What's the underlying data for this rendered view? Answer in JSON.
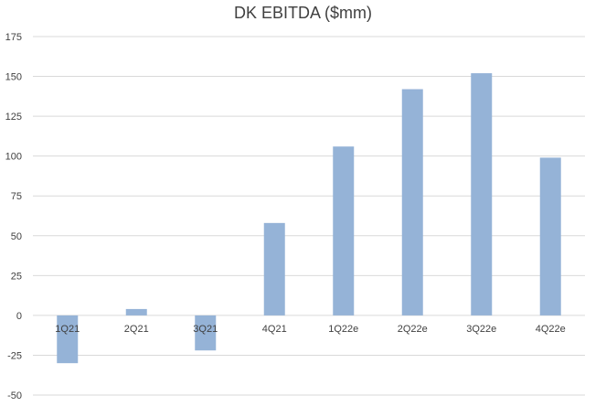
{
  "chart_data": {
    "type": "bar",
    "title": "DK EBITDA ($mm)",
    "xlabel": "",
    "ylabel": "",
    "categories": [
      "1Q21",
      "2Q21",
      "3Q21",
      "4Q21",
      "1Q22e",
      "2Q22e",
      "3Q22e",
      "4Q22e"
    ],
    "values": [
      -30,
      4,
      -22,
      58,
      106,
      142,
      152,
      99
    ],
    "ylim": [
      -50,
      175
    ],
    "yticks": [
      "-50",
      "-25",
      "0",
      "25",
      "50",
      "75",
      "100",
      "125",
      "150",
      "175"
    ],
    "grid": true,
    "legend": "none",
    "colors": {
      "bar": "#95b3d7",
      "grid": "#d9d9d9",
      "text": "#404040"
    }
  }
}
